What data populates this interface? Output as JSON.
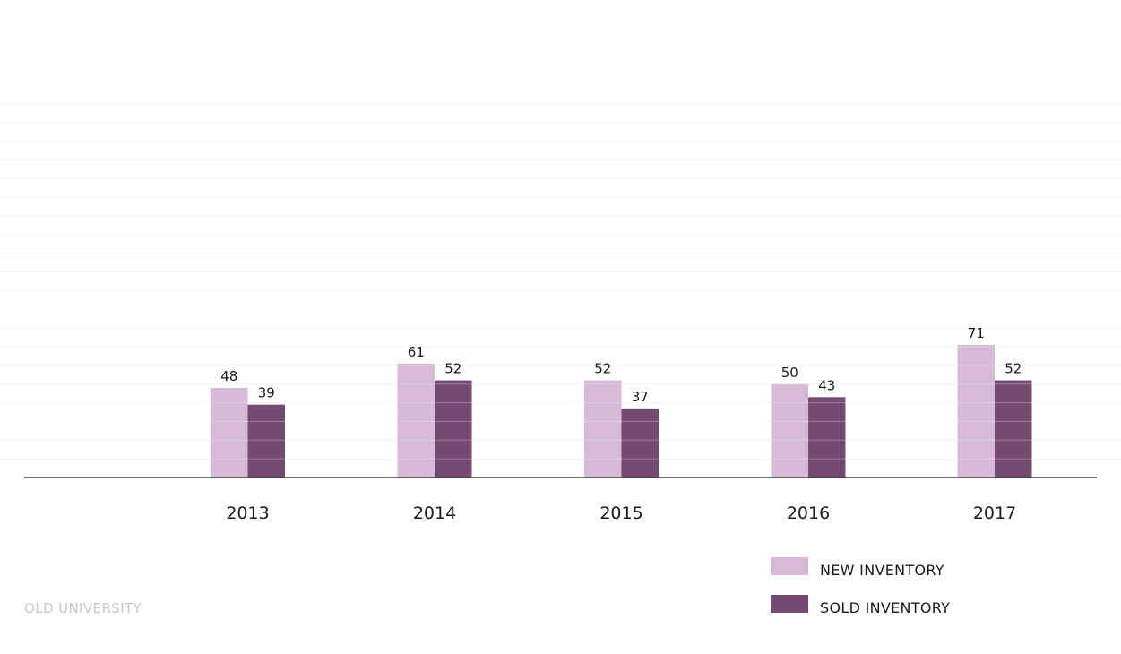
{
  "chart_data": {
    "type": "bar",
    "categories": [
      "2013",
      "2014",
      "2015",
      "2016",
      "2017"
    ],
    "series": [
      {
        "name": "NEW INVENTORY",
        "values": [
          48,
          61,
          52,
          50,
          71
        ],
        "color": "#d7b9d8"
      },
      {
        "name": "SOLD INVENTORY",
        "values": [
          39,
          52,
          37,
          43,
          52
        ],
        "color": "#744a73"
      }
    ],
    "ylim": [
      0,
      200
    ],
    "grid": true,
    "legend_position": "bottom-right"
  },
  "footer": {
    "source": "OLD UNIVERSITY"
  }
}
